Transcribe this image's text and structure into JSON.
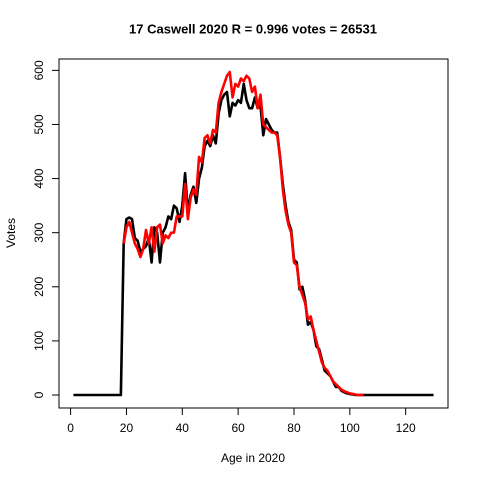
{
  "chart_data": {
    "type": "line",
    "title": "17 Caswell 2020 R = 0.996 votes = 26531",
    "xlabel": "Age in 2020",
    "ylabel": "Votes",
    "x": [
      1,
      2,
      3,
      4,
      5,
      6,
      7,
      8,
      9,
      10,
      11,
      12,
      13,
      14,
      15,
      16,
      17,
      18,
      19,
      20,
      21,
      22,
      23,
      24,
      25,
      26,
      27,
      28,
      29,
      30,
      31,
      32,
      33,
      34,
      35,
      36,
      37,
      38,
      39,
      40,
      41,
      42,
      43,
      44,
      45,
      46,
      47,
      48,
      49,
      50,
      51,
      52,
      53,
      54,
      55,
      56,
      57,
      58,
      59,
      60,
      61,
      62,
      63,
      64,
      65,
      66,
      67,
      68,
      69,
      70,
      71,
      72,
      73,
      74,
      75,
      76,
      77,
      78,
      79,
      80,
      81,
      82,
      83,
      84,
      85,
      86,
      87,
      88,
      89,
      90,
      91,
      92,
      93,
      94,
      95,
      96,
      97,
      98,
      99,
      100,
      101,
      102,
      103,
      104,
      105,
      106,
      107,
      108,
      109,
      110,
      111,
      112,
      113,
      114,
      115,
      116,
      117,
      118,
      119,
      120,
      121,
      122,
      123,
      124,
      125,
      126,
      127,
      128,
      129,
      130
    ],
    "series": [
      {
        "color": "#000000",
        "values": [
          0,
          0,
          0,
          0,
          0,
          0,
          0,
          0,
          0,
          0,
          0,
          0,
          0,
          0,
          0,
          0,
          0,
          0,
          280,
          325,
          328,
          325,
          290,
          285,
          265,
          270,
          275,
          290,
          245,
          310,
          300,
          245,
          300,
          310,
          330,
          325,
          350,
          345,
          320,
          350,
          410,
          340,
          370,
          385,
          355,
          400,
          420,
          460,
          470,
          460,
          480,
          465,
          520,
          545,
          555,
          560,
          515,
          540,
          535,
          545,
          540,
          575,
          545,
          530,
          530,
          550,
          530,
          535,
          480,
          510,
          500,
          490,
          485,
          485,
          440,
          390,
          350,
          320,
          305,
          250,
          245,
          195,
          200,
          175,
          130,
          135,
          120,
          90,
          85,
          65,
          45,
          40,
          35,
          25,
          15,
          15,
          8,
          5,
          3,
          2,
          1,
          0,
          0,
          0,
          0,
          0,
          0,
          0,
          0,
          0,
          0,
          0,
          0,
          0,
          0,
          0,
          0,
          0,
          0,
          0,
          0,
          0,
          0,
          0,
          0,
          0,
          0,
          0,
          0,
          0
        ]
      },
      {
        "color": "#ff0000",
        "values": [
          null,
          null,
          null,
          null,
          null,
          null,
          null,
          null,
          null,
          null,
          null,
          null,
          null,
          null,
          null,
          null,
          null,
          null,
          280,
          310,
          320,
          300,
          280,
          270,
          255,
          270,
          305,
          280,
          310,
          265,
          310,
          315,
          280,
          295,
          290,
          300,
          300,
          330,
          330,
          330,
          390,
          325,
          365,
          380,
          370,
          440,
          430,
          475,
          480,
          465,
          490,
          485,
          540,
          560,
          575,
          590,
          597,
          550,
          575,
          570,
          585,
          580,
          590,
          585,
          560,
          570,
          530,
          555,
          500,
          495,
          490,
          485,
          485,
          480,
          440,
          380,
          340,
          315,
          300,
          245,
          240,
          200,
          185,
          170,
          140,
          145,
          120,
          100,
          80,
          60,
          50,
          45,
          35,
          25,
          20,
          15,
          10,
          7,
          5,
          3,
          2,
          1,
          0,
          0,
          0,
          null,
          null,
          null,
          null,
          null,
          null,
          null,
          null,
          null,
          null,
          null,
          null,
          null,
          null,
          null,
          null,
          null,
          null,
          null,
          null,
          null,
          null,
          null,
          null,
          null
        ]
      }
    ],
    "xlim": [
      -4.16,
      135.16
    ],
    "xticks": [
      0,
      20,
      40,
      60,
      80,
      100,
      120
    ],
    "ylim": [
      -24,
      621
    ],
    "yticks": [
      0,
      100,
      200,
      300,
      400,
      500,
      600
    ]
  }
}
